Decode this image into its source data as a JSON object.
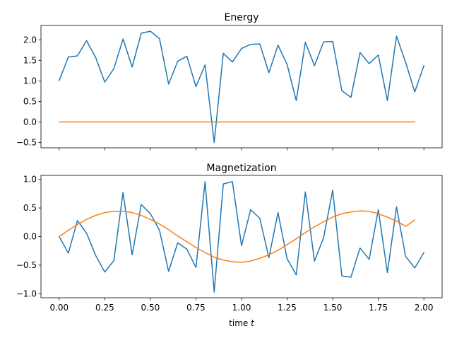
{
  "chart_data": [
    {
      "type": "line",
      "title": "Energy",
      "xlabel": "",
      "ylabel": "",
      "xlim": [
        -0.1,
        2.1
      ],
      "ylim": [
        -0.63,
        2.35
      ],
      "xticks": [
        0.0,
        0.25,
        0.5,
        0.75,
        1.0,
        1.25,
        1.5,
        1.75,
        2.0
      ],
      "xtick_labels_visible": false,
      "yticks": [
        -0.5,
        0.0,
        0.5,
        1.0,
        1.5,
        2.0
      ],
      "ytick_labels": [
        "−0.5",
        "0.0",
        "0.5",
        "1.0",
        "1.5",
        "2.0"
      ],
      "grid": false,
      "legend": "none",
      "series": [
        {
          "color": "#1f77b4",
          "x": [
            0.0,
            0.05,
            0.1,
            0.15,
            0.2,
            0.25,
            0.3,
            0.35,
            0.4,
            0.45,
            0.5,
            0.55,
            0.6,
            0.65,
            0.7,
            0.75,
            0.8,
            0.85,
            0.9,
            0.95,
            1.0,
            1.05,
            1.1,
            1.15,
            1.2,
            1.25,
            1.3,
            1.35,
            1.4,
            1.45,
            1.5,
            1.55,
            1.6,
            1.65,
            1.7,
            1.75,
            1.8,
            1.85,
            1.9,
            1.95,
            2.0
          ],
          "y": [
            1.01,
            1.58,
            1.61,
            1.98,
            1.57,
            0.97,
            1.3,
            2.02,
            1.34,
            2.16,
            2.21,
            2.03,
            0.92,
            1.48,
            1.6,
            0.86,
            1.39,
            -0.5,
            1.67,
            1.46,
            1.79,
            1.89,
            1.9,
            1.2,
            1.87,
            1.4,
            0.52,
            1.94,
            1.37,
            1.95,
            1.96,
            0.76,
            0.6,
            1.69,
            1.42,
            1.63,
            0.52,
            2.09,
            1.45,
            0.73,
            1.37
          ]
        },
        {
          "color": "#ff7f0e",
          "x": [
            0.0,
            0.05,
            0.1,
            0.15,
            0.2,
            0.25,
            0.3,
            0.35,
            0.4,
            0.45,
            0.5,
            0.55,
            0.6,
            0.65,
            0.7,
            0.75,
            0.8,
            0.85,
            0.9,
            0.95,
            1.0,
            1.05,
            1.1,
            1.15,
            1.2,
            1.25,
            1.3,
            1.35,
            1.4,
            1.45,
            1.5,
            1.55,
            1.6,
            1.65,
            1.7,
            1.75,
            1.8,
            1.85,
            1.9,
            1.95
          ],
          "y": [
            0,
            0,
            0,
            0,
            0,
            0,
            0,
            0,
            0,
            0,
            0,
            0,
            0,
            0,
            0,
            0,
            0,
            0,
            0,
            0,
            0,
            0,
            0,
            0,
            0,
            0,
            0,
            0,
            0,
            0,
            0,
            0,
            0,
            0,
            0,
            0,
            0,
            0,
            0,
            0
          ]
        }
      ]
    },
    {
      "type": "line",
      "title": "Magnetization",
      "xlabel": "time t",
      "xlabel_main": "time ",
      "xlabel_var": "t",
      "ylabel": "",
      "xlim": [
        -0.1,
        2.1
      ],
      "ylim": [
        -1.07,
        1.07
      ],
      "xticks": [
        0.0,
        0.25,
        0.5,
        0.75,
        1.0,
        1.25,
        1.5,
        1.75,
        2.0
      ],
      "xtick_labels": [
        "0.00",
        "0.25",
        "0.50",
        "0.75",
        "1.00",
        "1.25",
        "1.50",
        "1.75",
        "2.00"
      ],
      "yticks": [
        -1.0,
        -0.5,
        0.0,
        0.5,
        1.0
      ],
      "ytick_labels": [
        "−1.0",
        "−0.5",
        "0.0",
        "0.5",
        "1.0"
      ],
      "grid": false,
      "legend": "none",
      "series": [
        {
          "color": "#1f77b4",
          "x": [
            0.0,
            0.05,
            0.1,
            0.15,
            0.2,
            0.25,
            0.3,
            0.35,
            0.4,
            0.45,
            0.5,
            0.55,
            0.6,
            0.65,
            0.7,
            0.75,
            0.8,
            0.85,
            0.9,
            0.95,
            1.0,
            1.05,
            1.1,
            1.15,
            1.2,
            1.25,
            1.3,
            1.35,
            1.4,
            1.45,
            1.5,
            1.55,
            1.6,
            1.65,
            1.7,
            1.75,
            1.8,
            1.85,
            1.9,
            1.95,
            2.0
          ],
          "y": [
            0.0,
            -0.29,
            0.28,
            0.06,
            -0.33,
            -0.62,
            -0.42,
            0.77,
            -0.32,
            0.56,
            0.4,
            0.11,
            -0.61,
            -0.11,
            -0.22,
            -0.54,
            0.96,
            -0.97,
            0.92,
            0.96,
            -0.16,
            0.47,
            0.32,
            -0.37,
            0.42,
            -0.39,
            -0.67,
            0.78,
            -0.43,
            -0.02,
            0.81,
            -0.69,
            -0.71,
            -0.2,
            -0.4,
            0.47,
            -0.63,
            0.52,
            -0.35,
            -0.55,
            -0.28
          ]
        },
        {
          "color": "#ff7f0e",
          "x": [
            0.0,
            0.05,
            0.1,
            0.15,
            0.2,
            0.25,
            0.3,
            0.35,
            0.4,
            0.45,
            0.5,
            0.55,
            0.6,
            0.65,
            0.7,
            0.75,
            0.8,
            0.85,
            0.9,
            0.95,
            1.0,
            1.05,
            1.1,
            1.15,
            1.2,
            1.25,
            1.3,
            1.35,
            1.4,
            1.45,
            1.5,
            1.55,
            1.6,
            1.65,
            1.7,
            1.75,
            1.8,
            1.85,
            1.9,
            1.95
          ],
          "y": [
            0.0,
            0.11,
            0.21,
            0.3,
            0.37,
            0.42,
            0.44,
            0.44,
            0.42,
            0.37,
            0.3,
            0.22,
            0.12,
            0.01,
            -0.09,
            -0.19,
            -0.28,
            -0.36,
            -0.41,
            -0.44,
            -0.45,
            -0.43,
            -0.38,
            -0.32,
            -0.24,
            -0.14,
            -0.04,
            0.07,
            0.17,
            0.26,
            0.34,
            0.4,
            0.43,
            0.45,
            0.44,
            0.4,
            0.34,
            0.27,
            0.18,
            0.29
          ]
        }
      ]
    }
  ]
}
